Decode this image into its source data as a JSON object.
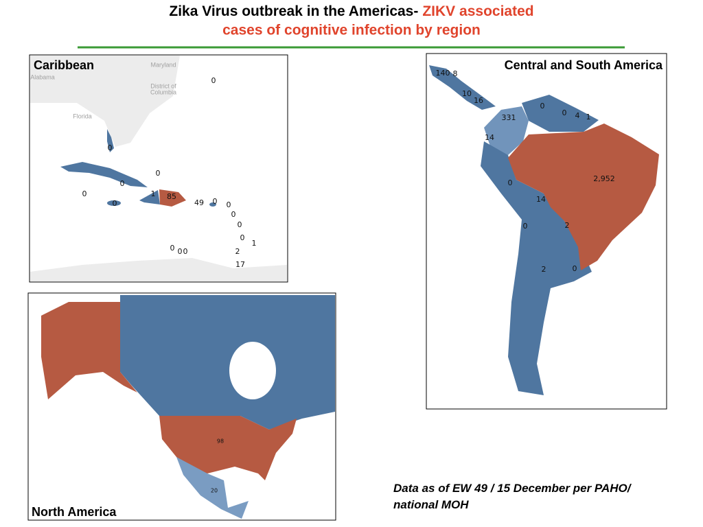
{
  "title": [
    "Zika Virus outbreak in the Americas-",
    "ZIKV associated",
    "cases of cognitive infection by region"
  ],
  "maps": [
    {
      "label": "Caribbean",
      "place_labels": [
        "Maryland",
        "Alabama",
        "District of",
        "Columbia",
        "Florida"
      ],
      "counts": [
        "0",
        "0",
        "0",
        "0",
        "0",
        "1",
        "85",
        "0",
        "49",
        "0",
        "0",
        "0",
        "0",
        "0",
        "1",
        "0",
        "0",
        "0",
        "2",
        "17"
      ]
    },
    {
      "label": "Central and South America",
      "counts": [
        "140",
        "8",
        "10",
        "16",
        "0",
        "0",
        "4",
        "1",
        "331",
        "14",
        "2,952",
        "0",
        "14",
        "0",
        "2",
        "2",
        "0"
      ]
    },
    {
      "label": "North America",
      "counts": [
        "98",
        "20"
      ]
    }
  ],
  "footnote": "Data as of EW 49 / 15 December per PAHO/ national MOH"
}
